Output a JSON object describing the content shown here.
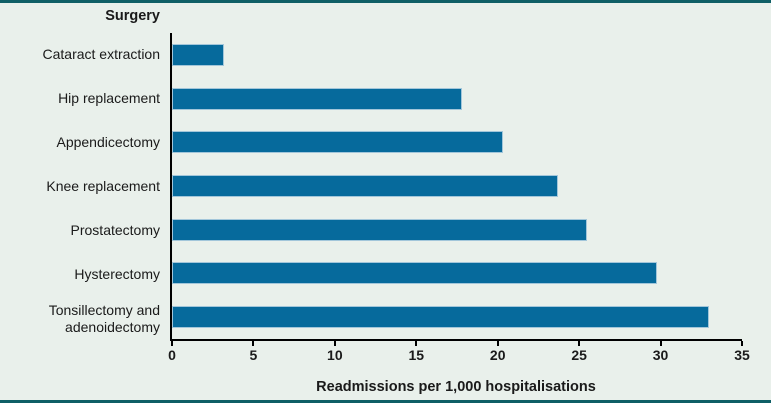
{
  "chart_data": {
    "type": "bar",
    "orientation": "horizontal",
    "y_axis_title": "Surgery",
    "xlabel": "Readmissions per 1,000 hospitalisations",
    "categories": [
      "Cataract extraction",
      "Hip replacement",
      "Appendicectomy",
      "Knee replacement",
      "Prostatectomy",
      "Hysterectomy",
      "Tonsillectomy and adenoidectomy"
    ],
    "values": [
      3.2,
      17.8,
      20.3,
      23.7,
      25.5,
      29.8,
      33.0
    ],
    "xlim": [
      0,
      35
    ],
    "x_ticks": [
      0,
      5,
      10,
      15,
      20,
      25,
      30,
      35
    ],
    "grid": false,
    "legend": "none",
    "colors": {
      "bar": "#066a9c",
      "bar_border": "#a2c6da",
      "background": "#e9f0eb",
      "frame_rule": "#0f5f66",
      "axis": "#000000"
    }
  }
}
